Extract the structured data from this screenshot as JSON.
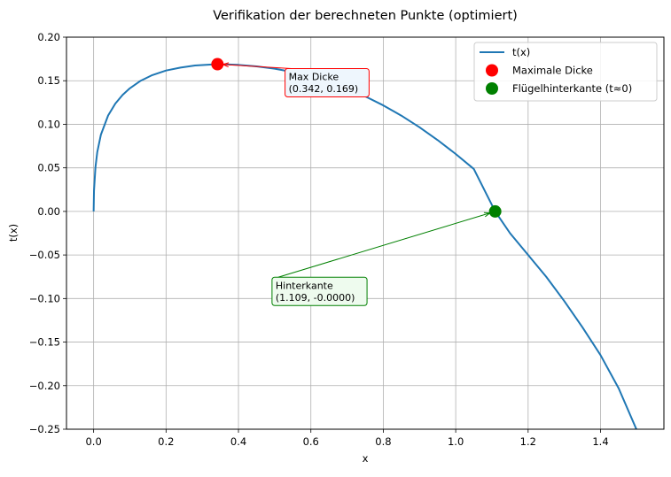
{
  "chart_data": {
    "type": "line",
    "title": "Verifikation der berechneten Punkte (optimiert)",
    "xlabel": "x",
    "ylabel": "t(x)",
    "xlim": [
      -0.075,
      1.575
    ],
    "ylim": [
      -0.25,
      0.2
    ],
    "xticks": [
      0.0,
      0.2,
      0.4,
      0.6,
      0.8,
      1.0,
      1.2,
      1.4
    ],
    "xtick_labels": [
      "0.0",
      "0.2",
      "0.4",
      "0.6",
      "0.8",
      "1.0",
      "1.2",
      "1.4"
    ],
    "yticks": [
      0.2,
      0.15,
      0.1,
      0.05,
      0.0,
      -0.05,
      -0.1,
      -0.15,
      -0.2,
      -0.25
    ],
    "ytick_labels": [
      "0.20",
      "0.15",
      "0.10",
      "0.05",
      "0.00",
      "−0.05",
      "−0.10",
      "−0.15",
      "−0.20",
      "−0.25"
    ],
    "grid": true,
    "legend_position": "top-right",
    "series": [
      {
        "name": "t(x)",
        "kind": "line",
        "color": "#1f77b4",
        "x": [
          0,
          0.001,
          0.005,
          0.01,
          0.02,
          0.04,
          0.06,
          0.08,
          0.1,
          0.13,
          0.16,
          0.2,
          0.24,
          0.28,
          0.342,
          0.4,
          0.45,
          0.5,
          0.55,
          0.6,
          0.65,
          0.7,
          0.75,
          0.8,
          0.85,
          0.9,
          0.95,
          1.0,
          1.05,
          1.109,
          1.15,
          1.2,
          1.25,
          1.3,
          1.35,
          1.4,
          1.45,
          1.5
        ],
        "y": [
          0,
          0.0237,
          0.0505,
          0.068,
          0.088,
          0.1101,
          0.1238,
          0.1337,
          0.1413,
          0.15,
          0.1561,
          0.1617,
          0.1651,
          0.1675,
          0.169,
          0.1682,
          0.1665,
          0.1638,
          0.16,
          0.155,
          0.1487,
          0.1411,
          0.1321,
          0.1217,
          0.1099,
          0.0966,
          0.0819,
          0.0659,
          0.0487,
          0.0,
          -0.025,
          -0.05,
          -0.075,
          -0.103,
          -0.133,
          -0.165,
          -0.203,
          -0.251
        ]
      },
      {
        "name": "Maximale Dicke",
        "kind": "marker",
        "color": "#ff0000",
        "x": [
          0.342
        ],
        "y": [
          0.169
        ]
      },
      {
        "name": "Flügelhinterkante (t≈0)",
        "kind": "marker",
        "color": "#008000",
        "x": [
          1.109
        ],
        "y": [
          0.0
        ]
      }
    ],
    "annotations": [
      {
        "id": "max",
        "lines": [
          "Max Dicke",
          "(0.342, 0.169)"
        ],
        "target": [
          0.342,
          0.169
        ],
        "text_at": [
          0.536,
          0.1355
        ],
        "color": "#ff0000",
        "box_fill": "#eef6fd"
      },
      {
        "id": "te",
        "lines": [
          "Hinterkante",
          "(1.109, -0.0000)"
        ],
        "target": [
          1.109,
          0.0
        ],
        "text_at": [
          0.5,
          -0.104
        ],
        "color": "#008000",
        "box_fill": "#eefbee"
      }
    ]
  }
}
